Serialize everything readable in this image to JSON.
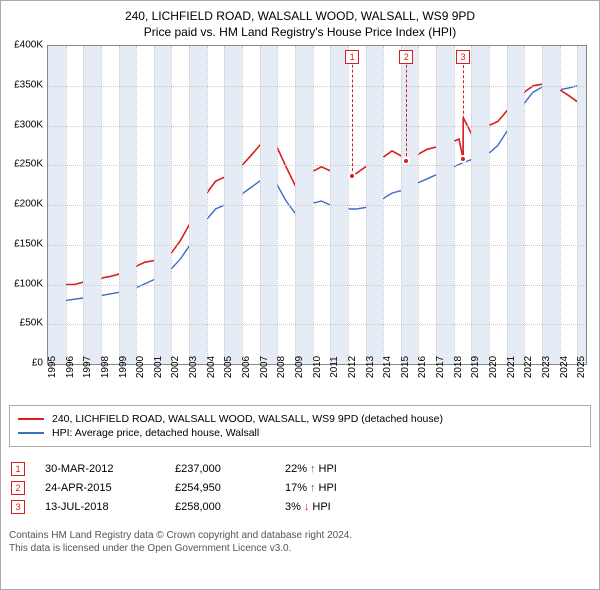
{
  "header": {
    "title1": "240, LICHFIELD ROAD, WALSALL WOOD, WALSALL, WS9 9PD",
    "title2": "Price paid vs. HM Land Registry's House Price Index (HPI)"
  },
  "chart": {
    "type": "line",
    "background_color": "#ffffff",
    "grid_color": "#cccccc",
    "border_color": "#888888",
    "band_color": "#e6ecf5",
    "xlim": [
      1995,
      2025.5
    ],
    "ylim": [
      0,
      400000
    ],
    "yticks": [
      {
        "v": 0,
        "label": "£0"
      },
      {
        "v": 50000,
        "label": "£50K"
      },
      {
        "v": 100000,
        "label": "£100K"
      },
      {
        "v": 150000,
        "label": "£150K"
      },
      {
        "v": 200000,
        "label": "£200K"
      },
      {
        "v": 250000,
        "label": "£250K"
      },
      {
        "v": 300000,
        "label": "£300K"
      },
      {
        "v": 350000,
        "label": "£350K"
      },
      {
        "v": 400000,
        "label": "£400K"
      }
    ],
    "xticks": [
      1995,
      1996,
      1997,
      1998,
      1999,
      2000,
      2001,
      2002,
      2003,
      2004,
      2005,
      2006,
      2007,
      2008,
      2009,
      2010,
      2011,
      2012,
      2013,
      2014,
      2015,
      2016,
      2017,
      2018,
      2019,
      2020,
      2021,
      2022,
      2023,
      2024,
      2025
    ],
    "bands": [
      [
        1995,
        1996
      ],
      [
        1997,
        1998
      ],
      [
        1999,
        2000
      ],
      [
        2001,
        2002
      ],
      [
        2003,
        2004
      ],
      [
        2005,
        2006
      ],
      [
        2007,
        2008
      ],
      [
        2009,
        2010
      ],
      [
        2011,
        2012
      ],
      [
        2013,
        2014
      ],
      [
        2015,
        2016
      ],
      [
        2017,
        2018
      ],
      [
        2019,
        2020
      ],
      [
        2021,
        2022
      ],
      [
        2023,
        2024
      ],
      [
        2025,
        2025.5
      ]
    ],
    "series": [
      {
        "name": "property",
        "color": "#d81e1e",
        "width": 1.6,
        "label": "240, LICHFIELD ROAD, WALSALL WOOD, WALSALL, WS9 9PD (detached house)",
        "points": [
          [
            1995,
            95000
          ],
          [
            1995.5,
            98000
          ],
          [
            1996,
            100000
          ],
          [
            1996.5,
            100000
          ],
          [
            1997,
            103000
          ],
          [
            1997.5,
            106000
          ],
          [
            1998,
            108000
          ],
          [
            1998.5,
            110000
          ],
          [
            1999,
            113000
          ],
          [
            1999.5,
            118000
          ],
          [
            2000,
            123000
          ],
          [
            2000.5,
            128000
          ],
          [
            2001,
            130000
          ],
          [
            2001.5,
            133000
          ],
          [
            2002,
            140000
          ],
          [
            2002.5,
            155000
          ],
          [
            2003,
            175000
          ],
          [
            2003.5,
            195000
          ],
          [
            2004,
            215000
          ],
          [
            2004.5,
            230000
          ],
          [
            2005,
            235000
          ],
          [
            2005.5,
            242000
          ],
          [
            2006,
            250000
          ],
          [
            2006.5,
            262000
          ],
          [
            2007,
            275000
          ],
          [
            2007.4,
            285000
          ],
          [
            2007.7,
            282000
          ],
          [
            2008,
            272000
          ],
          [
            2008.5,
            248000
          ],
          [
            2009,
            225000
          ],
          [
            2009.5,
            232000
          ],
          [
            2010,
            242000
          ],
          [
            2010.5,
            248000
          ],
          [
            2011,
            243000
          ],
          [
            2011.5,
            238000
          ],
          [
            2012,
            235000
          ],
          [
            2012.24,
            237000
          ],
          [
            2012.5,
            240000
          ],
          [
            2013,
            248000
          ],
          [
            2013.5,
            255000
          ],
          [
            2014,
            260000
          ],
          [
            2014.5,
            268000
          ],
          [
            2015,
            262000
          ],
          [
            2015.31,
            254950
          ],
          [
            2015.5,
            258000
          ],
          [
            2016,
            264000
          ],
          [
            2016.5,
            270000
          ],
          [
            2017,
            273000
          ],
          [
            2017.5,
            276000
          ],
          [
            2018,
            280000
          ],
          [
            2018.3,
            283000
          ],
          [
            2018.53,
            258000
          ],
          [
            2018.54,
            310000
          ],
          [
            2019,
            290000
          ],
          [
            2019.5,
            295000
          ],
          [
            2020,
            300000
          ],
          [
            2020.5,
            305000
          ],
          [
            2021,
            318000
          ],
          [
            2021.5,
            330000
          ],
          [
            2022,
            342000
          ],
          [
            2022.5,
            350000
          ],
          [
            2023,
            352000
          ],
          [
            2023.5,
            348000
          ],
          [
            2024,
            345000
          ],
          [
            2024.5,
            338000
          ],
          [
            2025,
            330000
          ]
        ]
      },
      {
        "name": "hpi",
        "color": "#3b6fc4",
        "width": 1.4,
        "label": "HPI: Average price, detached house, Walsall",
        "points": [
          [
            1995,
            78000
          ],
          [
            1996,
            80000
          ],
          [
            1997,
            83000
          ],
          [
            1998,
            86000
          ],
          [
            1999,
            90000
          ],
          [
            2000,
            96000
          ],
          [
            2000.5,
            101000
          ],
          [
            2001,
            106000
          ],
          [
            2001.5,
            112000
          ],
          [
            2002,
            120000
          ],
          [
            2002.5,
            132000
          ],
          [
            2003,
            148000
          ],
          [
            2003.5,
            165000
          ],
          [
            2004,
            182000
          ],
          [
            2004.5,
            195000
          ],
          [
            2005,
            200000
          ],
          [
            2005.5,
            207000
          ],
          [
            2006,
            214000
          ],
          [
            2006.5,
            222000
          ],
          [
            2007,
            230000
          ],
          [
            2007.5,
            233000
          ],
          [
            2008,
            225000
          ],
          [
            2008.5,
            205000
          ],
          [
            2009,
            190000
          ],
          [
            2009.5,
            195000
          ],
          [
            2010,
            202000
          ],
          [
            2010.5,
            205000
          ],
          [
            2011,
            200000
          ],
          [
            2011.5,
            197000
          ],
          [
            2012,
            195000
          ],
          [
            2012.5,
            195000
          ],
          [
            2013,
            197000
          ],
          [
            2013.5,
            202000
          ],
          [
            2014,
            208000
          ],
          [
            2014.5,
            215000
          ],
          [
            2015,
            218000
          ],
          [
            2015.5,
            223000
          ],
          [
            2016,
            228000
          ],
          [
            2016.5,
            233000
          ],
          [
            2017,
            238000
          ],
          [
            2017.5,
            243000
          ],
          [
            2018,
            248000
          ],
          [
            2018.5,
            253000
          ],
          [
            2019,
            257000
          ],
          [
            2019.5,
            261000
          ],
          [
            2020,
            265000
          ],
          [
            2020.5,
            275000
          ],
          [
            2021,
            292000
          ],
          [
            2021.5,
            310000
          ],
          [
            2022,
            328000
          ],
          [
            2022.5,
            342000
          ],
          [
            2023,
            348000
          ],
          [
            2023.5,
            348000
          ],
          [
            2024,
            345000
          ],
          [
            2024.5,
            347000
          ],
          [
            2025,
            350000
          ]
        ]
      }
    ],
    "markers": [
      {
        "n": "1",
        "x": 2012.24,
        "y": 237000,
        "color": "#d81e1e"
      },
      {
        "n": "2",
        "x": 2015.31,
        "y": 254950,
        "color": "#d81e1e"
      },
      {
        "n": "3",
        "x": 2018.53,
        "y": 258000,
        "color": "#d81e1e"
      }
    ]
  },
  "sales": [
    {
      "n": "1",
      "date": "30-MAR-2012",
      "price": "£237,000",
      "pct": "22%",
      "dir": "up",
      "note": "HPI",
      "color": "#d81e1e"
    },
    {
      "n": "2",
      "date": "24-APR-2015",
      "price": "£254,950",
      "pct": "17%",
      "dir": "up",
      "note": "HPI",
      "color": "#d81e1e"
    },
    {
      "n": "3",
      "date": "13-JUL-2018",
      "price": "£258,000",
      "pct": "3%",
      "dir": "down",
      "note": "HPI",
      "color": "#d81e1e"
    }
  ],
  "footer": {
    "line1": "Contains HM Land Registry data © Crown copyright and database right 2024.",
    "line2": "This data is licensed under the Open Government Licence v3.0."
  }
}
